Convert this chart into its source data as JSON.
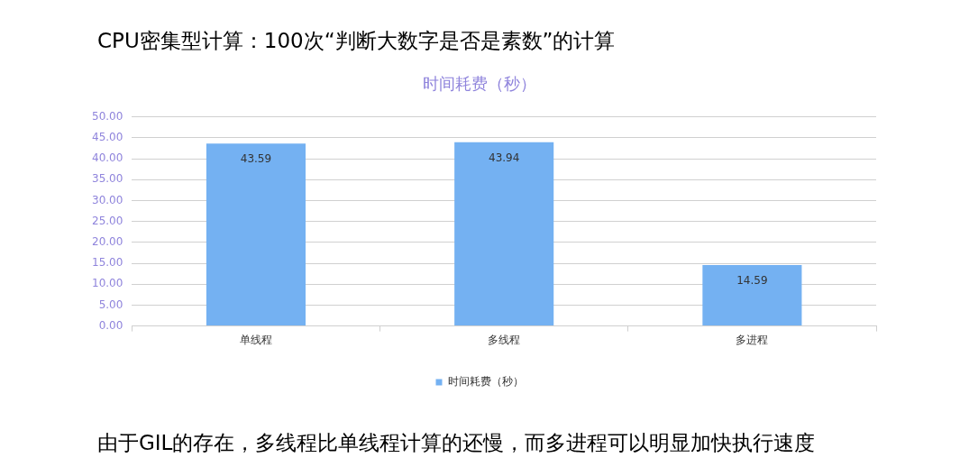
{
  "chart_data": {
    "type": "bar",
    "title": "时间耗费（秒）",
    "categories": [
      "单线程",
      "多线程",
      "多进程"
    ],
    "series": [
      {
        "name": "时间耗费（秒）",
        "color": "#74b1f2",
        "values": [
          43.59,
          43.94,
          14.59
        ]
      }
    ],
    "ylim": [
      0,
      50
    ],
    "yticks": [
      {
        "value": 0,
        "label": "0.00"
      },
      {
        "value": 5,
        "label": "5.00"
      },
      {
        "value": 10,
        "label": "10.00"
      },
      {
        "value": 15,
        "label": "15.00"
      },
      {
        "value": 20,
        "label": "20.00"
      },
      {
        "value": 25,
        "label": "25.00"
      },
      {
        "value": 30,
        "label": "30.00"
      },
      {
        "value": 35,
        "label": "35.00"
      },
      {
        "value": 40,
        "label": "40.00"
      },
      {
        "value": 45,
        "label": "45.00"
      },
      {
        "value": 50,
        "label": "50.00"
      }
    ],
    "grid": "y",
    "legend": "bottom",
    "data_labels": true,
    "annotations": [
      "CPU密集型计算：100次“判断大数字是否是素数”的计算",
      "由于GIL的存在，多线程比单线程计算的还慢，而多进程可以明显加快执行速度"
    ]
  }
}
